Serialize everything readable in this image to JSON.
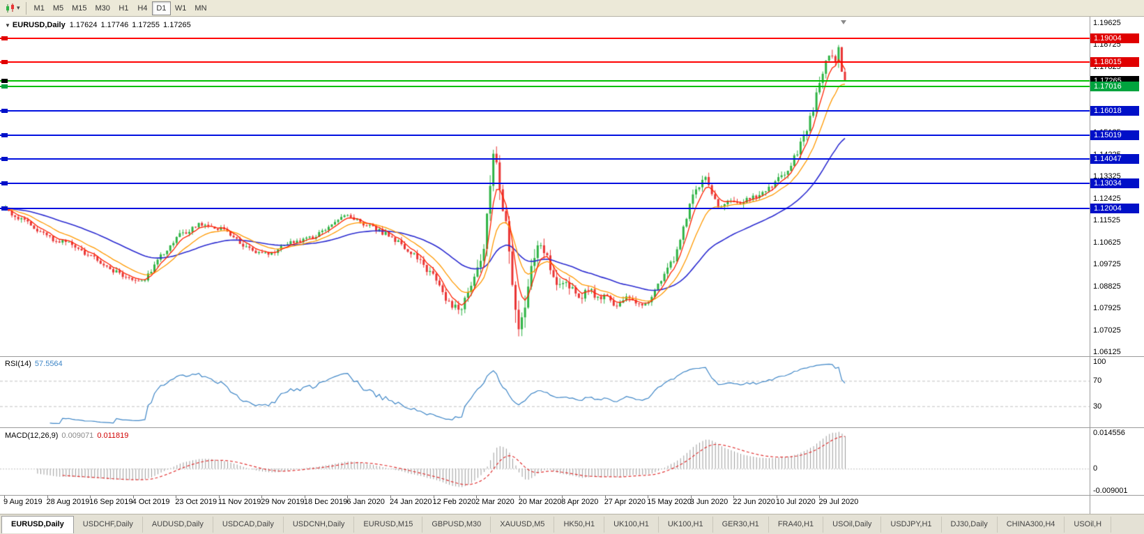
{
  "toolbar": {
    "timeframes": [
      "M1",
      "M5",
      "M15",
      "M30",
      "H1",
      "H4",
      "D1",
      "W1",
      "MN"
    ],
    "selected": "D1",
    "icons": {
      "chart_type": "candlestick-chart-icon",
      "chart_type_dropdown": "chevron-down-icon"
    }
  },
  "header": {
    "symbol": "EURUSD,Daily",
    "open": "1.17624",
    "high": "1.17746",
    "low": "1.17255",
    "close": "1.17265",
    "marker_icon": "chevron-down-icon"
  },
  "levels": [
    {
      "price": "1.19004",
      "value": 1.19004,
      "line_color": "#ff0000",
      "box_color": "#e00000",
      "kind": "resistance"
    },
    {
      "price": "1.18015",
      "value": 1.18015,
      "line_color": "#ff0000",
      "box_color": "#e00000",
      "kind": "resistance"
    },
    {
      "price": "1.17265",
      "value": 1.17265,
      "line_color": "#00c000",
      "box_color": "#000000",
      "kind": "current-price"
    },
    {
      "price": "1.17016",
      "value": 1.17016,
      "line_color": "#00c000",
      "box_color": "#00a33e",
      "kind": "support"
    },
    {
      "price": "1.16018",
      "value": 1.16018,
      "line_color": "#0010e0",
      "box_color": "#0010c8",
      "kind": "support"
    },
    {
      "price": "1.15019",
      "value": 1.15019,
      "line_color": "#0010e0",
      "box_color": "#0010c8",
      "kind": "support"
    },
    {
      "price": "1.14047",
      "value": 1.14047,
      "line_color": "#0010e0",
      "box_color": "#0010c8",
      "kind": "support"
    },
    {
      "price": "1.13034",
      "value": 1.13034,
      "line_color": "#0010e0",
      "box_color": "#0010c8",
      "kind": "support"
    },
    {
      "price": "1.12004",
      "value": 1.12004,
      "line_color": "#0010e0",
      "box_color": "#0010c8",
      "kind": "support"
    }
  ],
  "rsi": {
    "label": "RSI(14)",
    "value": "57.5564",
    "axis": [
      "100",
      "70",
      "30"
    ],
    "color": "#3d85c6"
  },
  "macd": {
    "label": "MACD(12,26,9)",
    "value_main": "0.009071",
    "value_signal": "0.011819",
    "axis": [
      "0.014556",
      "0",
      "-0.009001"
    ],
    "histogram_color": "#9b9b9b",
    "signal_color": "#e03030"
  },
  "tabs": {
    "active_index": 0,
    "items": [
      "EURUSD,Daily",
      "USDCHF,Daily",
      "AUDUSD,Daily",
      "USDCAD,Daily",
      "USDCNH,Daily",
      "EURUSD,M15",
      "GBPUSD,M30",
      "XAUUSD,M5",
      "HK50,H1",
      "UK100,H1",
      "UK100,H1",
      "GER30,H1",
      "FRA40,H1",
      "USOil,Daily",
      "USDJPY,H1",
      "DJ30,Daily",
      "CHINA300,H4",
      "USOil,H"
    ]
  },
  "chart_data": {
    "type": "candlestick",
    "symbol": "EURUSD",
    "timeframe": "Daily",
    "last_ohlc": {
      "open": 1.17624,
      "high": 1.17746,
      "low": 1.17255,
      "close": 1.17265
    },
    "y_axis_ticks": [
      "1.19625",
      "1.18725",
      "1.17825",
      "1.16925",
      "1.16025",
      "1.15125",
      "1.14225",
      "1.13325",
      "1.12425",
      "1.11525",
      "1.10625",
      "1.09725",
      "1.08825",
      "1.07925",
      "1.07025",
      "1.06125"
    ],
    "price_range": [
      1.06125,
      1.19625
    ],
    "x_axis_dates": [
      "9 Aug 2019",
      "28 Aug 2019",
      "16 Sep 2019",
      "4 Oct 2019",
      "23 Oct 2019",
      "11 Nov 2019",
      "29 Nov 2019",
      "18 Dec 2019",
      "6 Jan 2020",
      "24 Jan 2020",
      "12 Feb 2020",
      "2 Mar 2020",
      "20 Mar 2020",
      "8 Apr 2020",
      "27 Apr 2020",
      "15 May 2020",
      "3 Jun 2020",
      "22 Jun 2020",
      "10 Jul 2020",
      "29 Jul 2020"
    ],
    "horizontal_levels": [
      1.19004,
      1.18015,
      1.17265,
      1.17016,
      1.16018,
      1.15019,
      1.14047,
      1.13034,
      1.12004
    ],
    "candle_count": 266,
    "candle_colors": {
      "up": "#2eb344",
      "down": "#e93434"
    },
    "moving_averages": [
      {
        "name": "ma-fast",
        "color": "#ff2200"
      },
      {
        "name": "ma-medium",
        "color": "#ff9900"
      },
      {
        "name": "ma-slow",
        "color": "#2b2bd0"
      }
    ],
    "price_path_anchors": [
      [
        0,
        1.1195
      ],
      [
        0.027,
        1.114
      ],
      [
        0.056,
        1.1075
      ],
      [
        0.081,
        1.105
      ],
      [
        0.11,
        1.0985
      ],
      [
        0.139,
        1.0925
      ],
      [
        0.164,
        1.09
      ],
      [
        0.184,
        1.1
      ],
      [
        0.205,
        1.109
      ],
      [
        0.234,
        1.114
      ],
      [
        0.259,
        1.1115
      ],
      [
        0.288,
        1.1035
      ],
      [
        0.313,
        1.101
      ],
      [
        0.338,
        1.106
      ],
      [
        0.363,
        1.108
      ],
      [
        0.384,
        1.1115
      ],
      [
        0.4,
        1.1175
      ],
      [
        0.417,
        1.116
      ],
      [
        0.434,
        1.1125
      ],
      [
        0.458,
        1.109
      ],
      [
        0.483,
        1.102
      ],
      [
        0.508,
        1.093
      ],
      [
        0.529,
        1.0805
      ],
      [
        0.542,
        1.079
      ],
      [
        0.558,
        1.09
      ],
      [
        0.571,
        1.105
      ],
      [
        0.577,
        1.13
      ],
      [
        0.581,
        1.145
      ],
      [
        0.59,
        1.128
      ],
      [
        0.598,
        1.11
      ],
      [
        0.606,
        1.082
      ],
      [
        0.612,
        1.068
      ],
      [
        0.618,
        1.076
      ],
      [
        0.626,
        1.095
      ],
      [
        0.635,
        1.108
      ],
      [
        0.641,
        1.103
      ],
      [
        0.65,
        1.096
      ],
      [
        0.658,
        1.088
      ],
      [
        0.666,
        1.092
      ],
      [
        0.674,
        1.087
      ],
      [
        0.684,
        1.0835
      ],
      [
        0.695,
        1.087
      ],
      [
        0.706,
        1.0825
      ],
      [
        0.716,
        1.0855
      ],
      [
        0.726,
        1.0805
      ],
      [
        0.737,
        1.0835
      ],
      [
        0.748,
        1.0815
      ],
      [
        0.758,
        1.0795
      ],
      [
        0.767,
        1.0815
      ],
      [
        0.778,
        1.089
      ],
      [
        0.789,
        1.095
      ],
      [
        0.799,
        1.101
      ],
      [
        0.809,
        1.113
      ],
      [
        0.816,
        1.123
      ],
      [
        0.824,
        1.128
      ],
      [
        0.834,
        1.133
      ],
      [
        0.842,
        1.126
      ],
      [
        0.851,
        1.12
      ],
      [
        0.861,
        1.1245
      ],
      [
        0.872,
        1.1215
      ],
      [
        0.882,
        1.1235
      ],
      [
        0.892,
        1.1245
      ],
      [
        0.903,
        1.127
      ],
      [
        0.914,
        1.13
      ],
      [
        0.924,
        1.1325
      ],
      [
        0.934,
        1.137
      ],
      [
        0.944,
        1.144
      ],
      [
        0.955,
        1.153
      ],
      [
        0.965,
        1.165
      ],
      [
        0.972,
        1.172
      ],
      [
        0.978,
        1.18
      ],
      [
        0.983,
        1.185
      ],
      [
        0.988,
        1.18
      ],
      [
        0.992,
        1.188
      ],
      [
        0.995,
        1.184
      ],
      [
        0.998,
        1.178
      ],
      [
        1,
        1.1727
      ]
    ],
    "volatility_anchors": [
      [
        0,
        0.0022
      ],
      [
        0.16,
        0.0022
      ],
      [
        0.33,
        0.0018
      ],
      [
        0.47,
        0.0022
      ],
      [
        0.53,
        0.0035
      ],
      [
        0.575,
        0.007
      ],
      [
        0.612,
        0.009
      ],
      [
        0.65,
        0.005
      ],
      [
        0.7,
        0.003
      ],
      [
        0.77,
        0.0024
      ],
      [
        0.8,
        0.0035
      ],
      [
        0.86,
        0.0026
      ],
      [
        0.93,
        0.003
      ],
      [
        0.97,
        0.0045
      ],
      [
        1,
        0.0045
      ]
    ],
    "indicators": {
      "rsi": {
        "name": "RSI(14)",
        "period": 14,
        "current": 57.5564,
        "overbought": 70,
        "oversold": 30,
        "axis_max": 100
      },
      "macd": {
        "name": "MACD(12,26,9)",
        "main": 0.009071,
        "signal": 0.011819,
        "scale_max": 0.014556,
        "scale_min": -0.009001
      }
    }
  }
}
